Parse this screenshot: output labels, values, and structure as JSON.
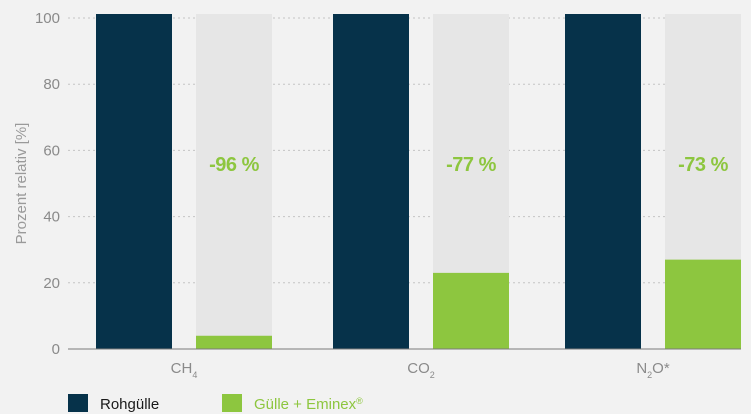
{
  "chart_data": {
    "type": "bar",
    "ylabel": "Prozent relativ [%]",
    "xlabel": "",
    "ylim": [
      0,
      100
    ],
    "yticks": [
      0,
      20,
      40,
      60,
      80,
      100
    ],
    "grid": true,
    "legend_position": "bottom-left",
    "categories": [
      {
        "base": "CH",
        "sub": "4",
        "suffix": ""
      },
      {
        "base": "CO",
        "sub": "2",
        "suffix": ""
      },
      {
        "base": "N",
        "sub": "2",
        "suffix": "O*"
      }
    ],
    "series": [
      {
        "name": "Rohgülle",
        "color": "#06324a",
        "values": [
          100,
          100,
          100
        ]
      },
      {
        "name": "Gülle + Eminex",
        "name_sup": "®",
        "color": "#8dc63f",
        "values": [
          4,
          23,
          27
        ]
      }
    ],
    "background_bar": {
      "color": "#e6e6e6",
      "value": 100
    },
    "annotations": [
      "-96 %",
      "-77 %",
      "-73 %"
    ],
    "annotation_color": "#8dc63f"
  }
}
